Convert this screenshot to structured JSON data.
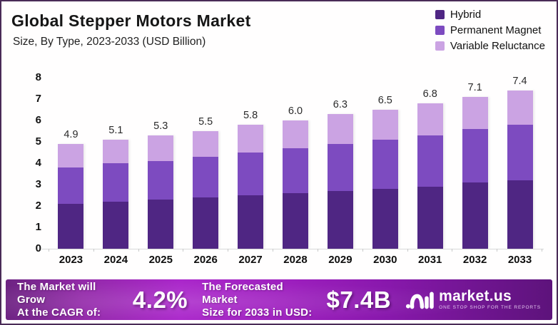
{
  "header": {
    "title": "Global Stepper Motors Market",
    "subtitle": "Size, By Type, 2023-2033 (USD Billion)"
  },
  "colors": {
    "hybrid": "#4F2683",
    "permanent_magnet": "#7D4BC0",
    "variable_reluctance": "#CBA3E3",
    "banner_accent": "#A826C9",
    "frame_border": "#4A2B57"
  },
  "chart_data": {
    "type": "bar",
    "stacked": true,
    "title": "Global Stepper Motors Market",
    "subtitle": "Size, By Type, 2023-2033 (USD Billion)",
    "categories": [
      "2023",
      "2024",
      "2025",
      "2026",
      "2027",
      "2028",
      "2029",
      "2030",
      "2031",
      "2032",
      "2033"
    ],
    "series": [
      {
        "name": "Hybrid",
        "color": "#4F2683",
        "values": [
          2.1,
          2.2,
          2.3,
          2.4,
          2.5,
          2.6,
          2.7,
          2.8,
          2.9,
          3.1,
          3.2
        ]
      },
      {
        "name": "Permanent Magnet",
        "color": "#7D4BC0",
        "values": [
          1.7,
          1.8,
          1.8,
          1.9,
          2.0,
          2.1,
          2.2,
          2.3,
          2.4,
          2.5,
          2.6
        ]
      },
      {
        "name": "Variable Reluctance",
        "color": "#CBA3E3",
        "values": [
          1.1,
          1.1,
          1.2,
          1.2,
          1.3,
          1.3,
          1.4,
          1.4,
          1.5,
          1.5,
          1.6
        ]
      }
    ],
    "totals": [
      4.9,
      5.1,
      5.3,
      5.5,
      5.8,
      6.0,
      6.3,
      6.5,
      6.8,
      7.1,
      7.4
    ],
    "total_labels": [
      "4.9",
      "5.1",
      "5.3",
      "5.5",
      "5.8",
      "6.0",
      "6.3",
      "6.5",
      "6.8",
      "7.1",
      "7.4"
    ],
    "yticks": [
      0,
      1,
      2,
      3,
      4,
      5,
      6,
      7,
      8
    ],
    "ylim": [
      0,
      8
    ],
    "ylabel": "",
    "xlabel": "",
    "grid": false,
    "legend_position": "top-right"
  },
  "legend": [
    {
      "label": "Hybrid",
      "color": "#4F2683"
    },
    {
      "label": "Permanent Magnet",
      "color": "#7D4BC0"
    },
    {
      "label": "Variable Reluctance",
      "color": "#CBA3E3"
    }
  ],
  "footer": {
    "cagr_label_line1": "The Market will Grow",
    "cagr_label_line2": "At the CAGR of:",
    "cagr_value": "4.2%",
    "forecast_label_line1": "The Forecasted Market",
    "forecast_label_line2": "Size for 2033 in USD:",
    "forecast_value": "$7.4B",
    "brand_name": "market.us",
    "brand_tagline": "ONE STOP SHOP FOR THE REPORTS",
    "brand_logo_icon": "market-us-swirl-icon"
  }
}
